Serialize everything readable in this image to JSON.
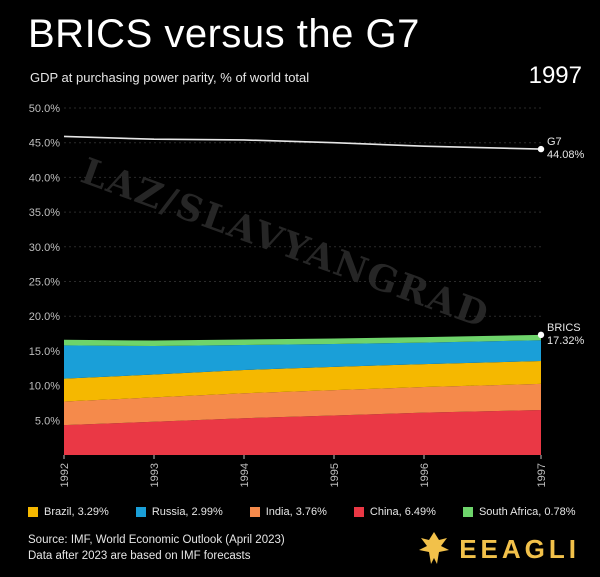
{
  "header": {
    "title": "BRICS versus the G7",
    "subtitle": "GDP at purchasing power parity, % of world total",
    "year": "1997"
  },
  "watermark": "LAZ/SLAVYANGRAD",
  "colors": {
    "background": "#000000",
    "g7_line": "#e6e6e6",
    "brazil": "#f5b800",
    "russia": "#1a9fd8",
    "india": "#f58a4b",
    "china": "#ea3845",
    "south_africa": "#6ed46b",
    "grid": "#2a2a2a",
    "axis_text": "#bfbfbf",
    "logo": "#f2c14a"
  },
  "chart_data": {
    "type": "area",
    "x": [
      1992,
      1993,
      1994,
      1995,
      1996,
      1997.3
    ],
    "x_tick_labels": [
      "1992",
      "1993",
      "1994",
      "1995",
      "1996",
      "1997"
    ],
    "y_tick_labels": [
      "5.0%",
      "10.0%",
      "15.0%",
      "20.0%",
      "25.0%",
      "30.0%",
      "35.0%",
      "40.0%",
      "45.0%",
      "50.0%"
    ],
    "ylim": [
      0,
      50
    ],
    "stack_order": [
      "china",
      "india",
      "brazil",
      "russia",
      "south_africa"
    ],
    "series": [
      {
        "key": "china",
        "name": "China",
        "values": [
          4.3,
          4.8,
          5.3,
          5.7,
          6.1,
          6.49
        ]
      },
      {
        "key": "india",
        "name": "India",
        "values": [
          3.4,
          3.5,
          3.6,
          3.65,
          3.7,
          3.76
        ]
      },
      {
        "key": "brazil",
        "name": "Brazil",
        "values": [
          3.3,
          3.3,
          3.35,
          3.35,
          3.3,
          3.29
        ]
      },
      {
        "key": "russia",
        "name": "Russia",
        "values": [
          4.8,
          4.1,
          3.6,
          3.3,
          3.1,
          2.99
        ]
      },
      {
        "key": "south_africa",
        "name": "South Africa",
        "values": [
          0.8,
          0.79,
          0.79,
          0.79,
          0.78,
          0.78
        ]
      }
    ],
    "g7": {
      "name": "G7",
      "values": [
        45.9,
        45.5,
        45.4,
        45.0,
        44.5,
        44.08
      ]
    },
    "end_labels": {
      "g7_name": "G7",
      "g7_value": "44.08%",
      "brics_name": "BRICS",
      "brics_value": "17.32%"
    },
    "grid": true
  },
  "legend": [
    {
      "label": "Brazil, 3.29%",
      "color_key": "brazil"
    },
    {
      "label": "Russia, 2.99%",
      "color_key": "russia"
    },
    {
      "label": "India, 3.76%",
      "color_key": "india"
    },
    {
      "label": "China, 6.49%",
      "color_key": "china"
    },
    {
      "label": "South Africa, 0.78%",
      "color_key": "south_africa"
    }
  ],
  "footer": {
    "source_line1": "Source: IMF, World Economic Outlook (April 2023)",
    "source_line2": "Data after 2023 are based on IMF forecasts",
    "logo_text": "EEAGLI",
    "logo_icon": "eagle-icon"
  }
}
